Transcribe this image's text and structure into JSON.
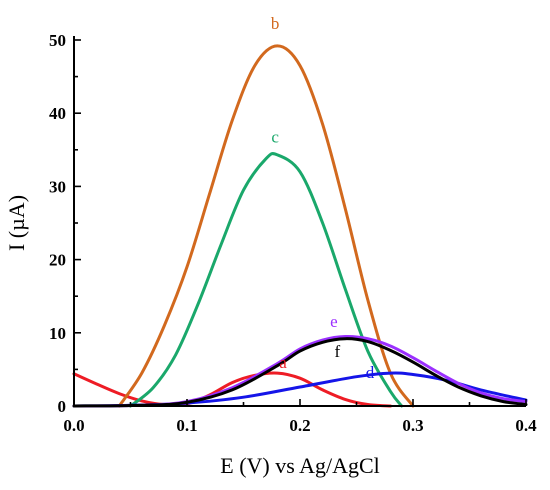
{
  "chart_data": {
    "type": "line",
    "xlabel": "E (V) vs Ag/AgCl",
    "ylabel": "I (µA)",
    "xlim": [
      0.0,
      0.4
    ],
    "ylim": [
      0,
      50
    ],
    "x_ticks": [
      0.0,
      0.1,
      0.2,
      0.3,
      0.4
    ],
    "y_ticks": [
      0,
      10,
      20,
      30,
      40,
      50
    ],
    "x_tick_labels": [
      "0.0",
      "0.1",
      "0.2",
      "0.3",
      "0.4"
    ],
    "y_tick_labels": [
      "0",
      "10",
      "20",
      "30",
      "40",
      "50"
    ],
    "grid": false,
    "series": [
      {
        "name": "a",
        "color": "#ee1c25",
        "label_at": [
          0.185,
          5.2
        ],
        "x": [
          0.0,
          0.02,
          0.04,
          0.06,
          0.08,
          0.1,
          0.12,
          0.14,
          0.16,
          0.18,
          0.2,
          0.22,
          0.24,
          0.26,
          0.28
        ],
        "y": [
          4.4,
          3.0,
          1.7,
          0.7,
          0.2,
          0.3,
          1.5,
          3.2,
          4.2,
          4.5,
          3.8,
          2.2,
          0.9,
          0.2,
          0.0
        ]
      },
      {
        "name": "b",
        "color": "#d2691e",
        "label_at": [
          0.178,
          51.5
        ],
        "x": [
          0.04,
          0.06,
          0.08,
          0.1,
          0.12,
          0.14,
          0.16,
          0.18,
          0.2,
          0.22,
          0.24,
          0.26,
          0.28,
          0.3
        ],
        "y": [
          0.0,
          4.5,
          11.0,
          19.0,
          29.0,
          39.0,
          46.5,
          49.2,
          46.5,
          38.5,
          27.0,
          14.5,
          4.5,
          0.0
        ]
      },
      {
        "name": "c",
        "color": "#1aa86b",
        "label_at": [
          0.178,
          36.0
        ],
        "x": [
          0.05,
          0.07,
          0.09,
          0.11,
          0.13,
          0.15,
          0.17,
          0.18,
          0.2,
          0.22,
          0.24,
          0.26,
          0.28,
          0.29
        ],
        "y": [
          0.0,
          2.5,
          7.0,
          14.0,
          22.0,
          29.5,
          33.8,
          34.3,
          32.0,
          25.0,
          16.0,
          7.5,
          2.0,
          0.0
        ]
      },
      {
        "name": "d",
        "color": "#1515e8",
        "label_at": [
          0.262,
          3.8
        ],
        "x": [
          0.0,
          0.05,
          0.1,
          0.15,
          0.2,
          0.25,
          0.28,
          0.3,
          0.33,
          0.36,
          0.4
        ],
        "y": [
          0.0,
          0.1,
          0.4,
          1.2,
          2.6,
          4.0,
          4.5,
          4.3,
          3.5,
          2.2,
          0.8
        ]
      },
      {
        "name": "e",
        "color": "#9b30ff",
        "label_at": [
          0.23,
          10.8
        ],
        "x": [
          0.0,
          0.06,
          0.1,
          0.14,
          0.18,
          0.2,
          0.22,
          0.24,
          0.26,
          0.28,
          0.3,
          0.32,
          0.34,
          0.36,
          0.38,
          0.4
        ],
        "y": [
          0.0,
          0.1,
          0.6,
          2.5,
          5.8,
          7.8,
          9.0,
          9.5,
          9.2,
          8.2,
          6.6,
          4.8,
          3.1,
          1.8,
          1.0,
          0.6
        ]
      },
      {
        "name": "f",
        "color": "#000000",
        "label_at": [
          0.233,
          6.7
        ],
        "x": [
          0.0,
          0.06,
          0.1,
          0.14,
          0.18,
          0.2,
          0.22,
          0.24,
          0.26,
          0.28,
          0.3,
          0.32,
          0.34,
          0.36,
          0.38,
          0.4
        ],
        "y": [
          0.0,
          0.1,
          0.5,
          2.2,
          5.5,
          7.5,
          8.7,
          9.2,
          8.8,
          7.6,
          6.0,
          4.2,
          2.6,
          1.4,
          0.6,
          0.2
        ]
      }
    ]
  }
}
